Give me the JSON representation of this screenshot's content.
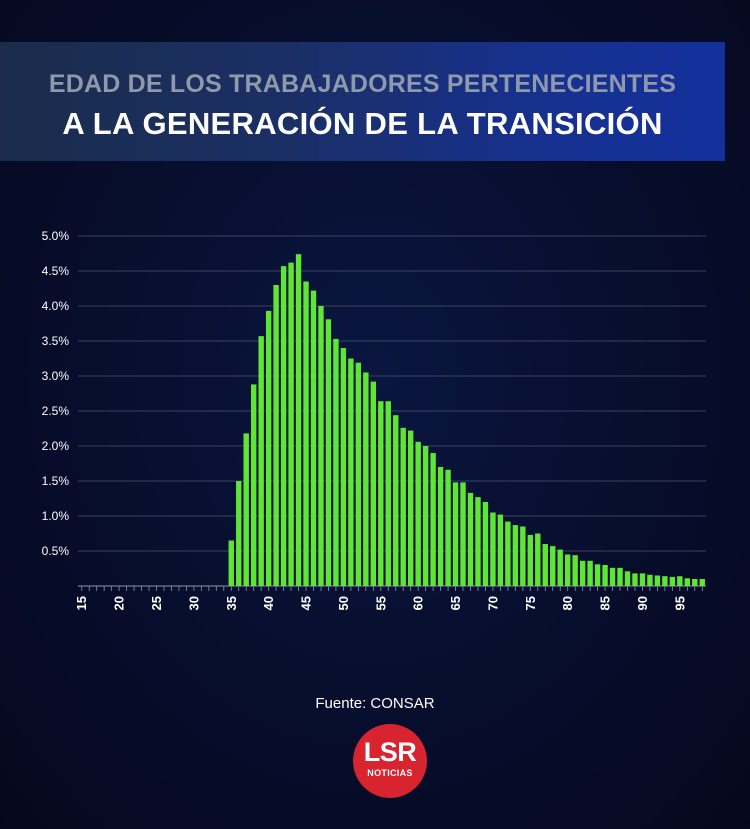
{
  "header": {
    "line1": "EDAD DE LOS TRABAJADORES PERTENECIENTES",
    "line2": "A LA GENERACIÓN DE LA TRANSICIÓN"
  },
  "source": "Fuente: CONSAR",
  "logo": {
    "brand": "LSR",
    "sub": "NOTICIAS"
  },
  "colors": {
    "bar": "#5fe634",
    "grid": "#4a5370",
    "text": "#ffffff",
    "logo": "#d8242f"
  },
  "chart_data": {
    "type": "bar",
    "title": "",
    "xlabel": "",
    "ylabel": "",
    "ylim": [
      0,
      5.0
    ],
    "grid": true,
    "y_ticks": [
      "0.5%",
      "1.0%",
      "1.5%",
      "2.0%",
      "2.5%",
      "3.0%",
      "3.5%",
      "4.0%",
      "4.5%",
      "5.0%"
    ],
    "y_tick_values": [
      0.5,
      1.0,
      1.5,
      2.0,
      2.5,
      3.0,
      3.5,
      4.0,
      4.5,
      5.0
    ],
    "x_ticks": [
      "15",
      "20",
      "25",
      "30",
      "35",
      "40",
      "45",
      "50",
      "55",
      "60",
      "65",
      "70",
      "75",
      "80",
      "85",
      "90",
      "95"
    ],
    "x_tick_values": [
      15,
      20,
      25,
      30,
      35,
      40,
      45,
      50,
      55,
      60,
      65,
      70,
      75,
      80,
      85,
      90,
      95
    ],
    "x_min": 14.5,
    "x_max": 98.5,
    "categories": [
      35,
      36,
      37,
      38,
      39,
      40,
      41,
      42,
      43,
      44,
      45,
      46,
      47,
      48,
      49,
      50,
      51,
      52,
      53,
      54,
      55,
      56,
      57,
      58,
      59,
      60,
      61,
      62,
      63,
      64,
      65,
      66,
      67,
      68,
      69,
      70,
      71,
      72,
      73,
      74,
      75,
      76,
      77,
      78,
      79,
      80,
      81,
      82,
      83,
      84,
      85,
      86,
      87,
      88,
      89,
      90,
      91,
      92,
      93,
      94,
      95,
      96,
      97,
      98
    ],
    "values": [
      0.65,
      1.5,
      2.18,
      2.88,
      3.57,
      3.93,
      4.3,
      4.57,
      4.62,
      4.74,
      4.35,
      4.22,
      4.0,
      3.81,
      3.53,
      3.4,
      3.25,
      3.19,
      3.05,
      2.92,
      2.64,
      2.64,
      2.44,
      2.26,
      2.22,
      2.06,
      2.0,
      1.9,
      1.7,
      1.66,
      1.48,
      1.48,
      1.33,
      1.27,
      1.2,
      1.05,
      1.02,
      0.92,
      0.87,
      0.85,
      0.73,
      0.75,
      0.6,
      0.57,
      0.52,
      0.45,
      0.44,
      0.36,
      0.36,
      0.31,
      0.3,
      0.26,
      0.26,
      0.21,
      0.18,
      0.18,
      0.16,
      0.15,
      0.14,
      0.13,
      0.14,
      0.11,
      0.1,
      0.1
    ]
  }
}
